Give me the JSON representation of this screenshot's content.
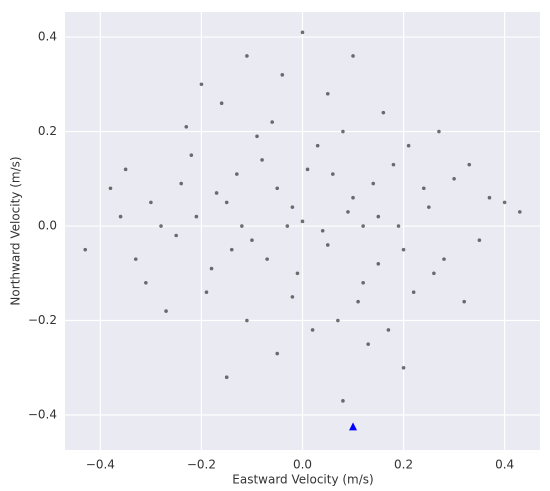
{
  "chart_data": {
    "type": "scatter",
    "xlabel": "Eastward Velocity (m/s)",
    "ylabel": "Northward Velocity (m/s)",
    "xlim": [
      -0.47,
      0.47
    ],
    "ylim": [
      -0.474,
      0.453
    ],
    "xticks": [
      {
        "value": -0.4,
        "label": "−0.4"
      },
      {
        "value": -0.2,
        "label": "−0.2"
      },
      {
        "value": 0,
        "label": "0.0"
      },
      0.2,
      0.4
    ],
    "yticks": [
      {
        "value": -0.4,
        "label": "−0.4"
      },
      {
        "value": -0.2,
        "label": "−0.2"
      },
      {
        "value": 0,
        "label": "0.0"
      },
      0.2,
      0.4
    ],
    "grid": true,
    "series": [
      {
        "color": "#000000",
        "marker": "circle",
        "x": [
          -0.21,
          -0.15,
          -0.1,
          -0.05,
          0.0,
          0.05,
          0.1,
          0.15,
          0.2,
          0.25,
          -0.25,
          -0.3,
          0.3,
          -0.18,
          0.12,
          -0.08,
          0.03,
          -0.02,
          0.18,
          -0.13,
          0.07,
          -0.22,
          0.22,
          -0.35,
          0.35,
          -0.38,
          0.4,
          -0.43,
          0.43,
          0.0,
          0.1,
          -0.11,
          -0.2,
          0.08,
          0.2,
          -0.15,
          0.05,
          -0.05,
          0.27,
          -0.27,
          0.16,
          -0.06,
          0.13,
          -0.31,
          0.32,
          -0.02,
          0.04,
          -0.12,
          0.09,
          -0.17,
          0.19,
          -0.24,
          0.24,
          -0.07,
          0.06,
          -0.14,
          0.14,
          -0.28,
          0.28,
          -0.01,
          0.01,
          -0.09,
          0.11,
          -0.19,
          0.21,
          -0.33,
          0.33,
          -0.04,
          0.17,
          -0.23,
          0.26,
          -0.36,
          0.37,
          -0.16,
          0.02,
          0.08,
          -0.11,
          0.12,
          -0.03,
          0.15
        ],
        "y": [
          0.02,
          0.05,
          -0.03,
          0.08,
          0.01,
          -0.04,
          0.06,
          0.02,
          -0.05,
          0.04,
          -0.02,
          0.05,
          0.1,
          -0.09,
          -0.12,
          0.14,
          0.17,
          -0.15,
          0.13,
          0.11,
          -0.2,
          0.15,
          -0.14,
          0.12,
          -0.03,
          0.08,
          0.05,
          -0.05,
          0.03,
          0.41,
          0.36,
          0.36,
          0.3,
          -0.37,
          -0.3,
          -0.32,
          0.28,
          -0.27,
          0.2,
          -0.18,
          0.24,
          0.22,
          -0.25,
          -0.12,
          -0.16,
          0.04,
          -0.01,
          0.0,
          0.03,
          0.07,
          0.0,
          0.09,
          0.08,
          -0.07,
          0.11,
          -0.05,
          0.09,
          0.0,
          -0.07,
          -0.1,
          0.12,
          0.19,
          -0.16,
          -0.14,
          0.17,
          -0.07,
          0.13,
          0.32,
          -0.22,
          0.21,
          -0.1,
          0.02,
          0.06,
          0.26,
          -0.22,
          0.2,
          -0.2,
          0.0,
          0.0,
          -0.08
        ]
      },
      {
        "color": "#0000ff",
        "marker": "triangle",
        "x": [
          0.1
        ],
        "y": [
          -0.425
        ]
      }
    ]
  }
}
